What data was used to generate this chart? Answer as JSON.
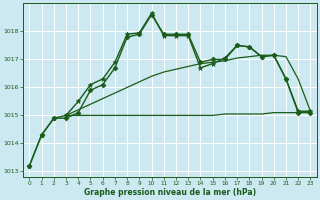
{
  "xlabel": "Graphe pression niveau de la mer (hPa)",
  "background_color": "#cce8f0",
  "grid_color": "#ffffff",
  "line_color": "#1a5c1a",
  "ylim": [
    1012.8,
    1019.0
  ],
  "yticks": [
    1013,
    1014,
    1015,
    1016,
    1017,
    1018
  ],
  "xlim": [
    -0.5,
    23.5
  ],
  "xticks": [
    0,
    1,
    2,
    3,
    4,
    5,
    6,
    7,
    8,
    9,
    10,
    11,
    12,
    13,
    14,
    15,
    16,
    17,
    18,
    19,
    20,
    21,
    22,
    23
  ],
  "series": [
    {
      "x": [
        0,
        1,
        2,
        3,
        4,
        5,
        6,
        7,
        8,
        9,
        10,
        11,
        12,
        13,
        14,
        15,
        16,
        17,
        18,
        19,
        20,
        21,
        22,
        23
      ],
      "y": [
        1013.2,
        1014.3,
        1014.9,
        1014.9,
        1015.1,
        1015.9,
        1016.1,
        1016.7,
        1017.8,
        1017.9,
        1018.6,
        1017.9,
        1017.9,
        1017.9,
        1016.9,
        1017.0,
        1017.0,
        1017.5,
        1017.45,
        1017.1,
        1017.15,
        1016.3,
        1015.1,
        1015.1
      ],
      "marker": "D",
      "markersize": 2.5,
      "linewidth": 1.0
    },
    {
      "x": [
        0,
        1,
        2,
        3,
        4,
        5,
        6,
        7,
        8,
        9,
        10,
        11,
        12,
        13,
        14,
        15,
        16,
        17,
        18,
        19,
        20,
        21,
        22,
        23
      ],
      "y": [
        1013.2,
        1014.3,
        1014.9,
        1015.0,
        1015.5,
        1016.1,
        1016.3,
        1016.9,
        1017.9,
        1017.95,
        1018.65,
        1017.85,
        1017.85,
        1017.85,
        1016.7,
        1016.85,
        1017.05,
        1017.5,
        1017.45,
        1017.1,
        1017.15,
        1016.3,
        1015.15,
        1015.15
      ],
      "marker": "*",
      "markersize": 3.5,
      "linewidth": 1.0
    },
    {
      "x": [
        3,
        4,
        5,
        6,
        7,
        8,
        9,
        10,
        11,
        12,
        13,
        14,
        15,
        16,
        17,
        18,
        19,
        20,
        21,
        22,
        23
      ],
      "y": [
        1015.0,
        1015.0,
        1015.0,
        1015.0,
        1015.0,
        1015.0,
        1015.0,
        1015.0,
        1015.0,
        1015.0,
        1015.0,
        1015.0,
        1015.0,
        1015.05,
        1015.05,
        1015.05,
        1015.05,
        1015.1,
        1015.1,
        1015.1,
        1015.15
      ],
      "marker": null,
      "markersize": 0,
      "linewidth": 0.9
    },
    {
      "x": [
        3,
        4,
        5,
        6,
        7,
        8,
        9,
        10,
        11,
        12,
        13,
        14,
        15,
        16,
        17,
        18,
        19,
        20,
        21,
        22,
        23
      ],
      "y": [
        1015.0,
        1015.2,
        1015.4,
        1015.6,
        1015.8,
        1016.0,
        1016.2,
        1016.4,
        1016.55,
        1016.65,
        1016.75,
        1016.85,
        1016.9,
        1016.95,
        1017.05,
        1017.1,
        1017.15,
        1017.15,
        1017.1,
        1016.3,
        1015.15
      ],
      "marker": null,
      "markersize": 0,
      "linewidth": 0.9
    }
  ]
}
